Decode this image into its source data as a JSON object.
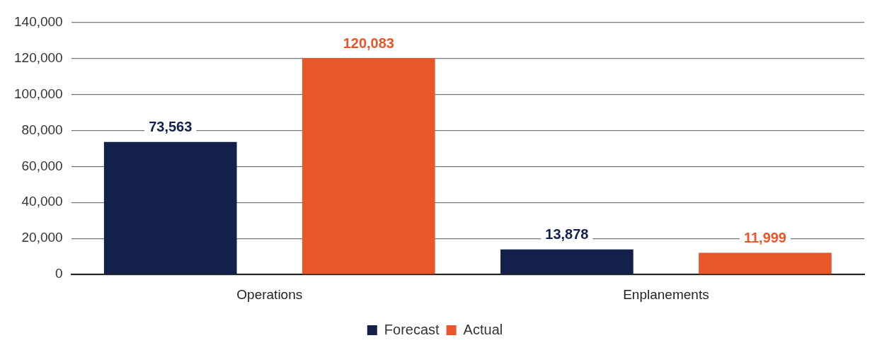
{
  "chart_data": {
    "type": "bar",
    "categories": [
      "Operations",
      "Enplanements"
    ],
    "series": [
      {
        "name": "Forecast",
        "color": "#13214a",
        "values": [
          73563,
          13878
        ],
        "value_labels": [
          "73,563",
          "13,878"
        ]
      },
      {
        "name": "Actual",
        "color": "#e8562a",
        "values": [
          120083,
          11999
        ],
        "value_labels": [
          "120,083",
          "11,999"
        ]
      }
    ],
    "ylim": [
      0,
      140000
    ],
    "yticks": [
      {
        "value": 0,
        "label": "0"
      },
      {
        "value": 20000,
        "label": "20,000"
      },
      {
        "value": 40000,
        "label": "40,000"
      },
      {
        "value": 60000,
        "label": "60,000"
      },
      {
        "value": 80000,
        "label": "80,000"
      },
      {
        "value": 100000,
        "label": "100,000"
      },
      {
        "value": 120000,
        "label": "120,000"
      },
      {
        "value": 140000,
        "label": "140,000"
      }
    ],
    "grid": "y",
    "legend": "bottom"
  }
}
